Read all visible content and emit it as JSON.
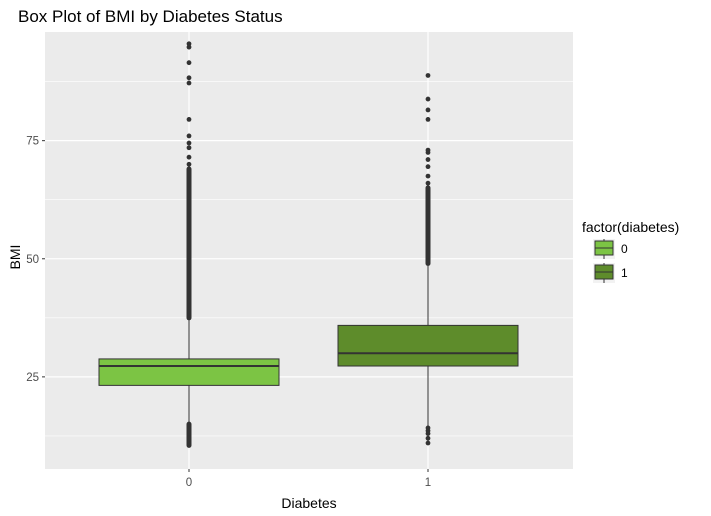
{
  "chart_data": {
    "type": "box",
    "title": "Box Plot of BMI by Diabetes Status",
    "xlabel": "Diabetes",
    "ylabel": "BMI",
    "categories": [
      "0",
      "1"
    ],
    "ylim": [
      5.5,
      98
    ],
    "yticks": [
      25,
      50,
      75
    ],
    "grid": true,
    "legend": {
      "title": "factor(diabetes)",
      "position": "right",
      "entries": [
        "0",
        "1"
      ]
    },
    "series": [
      {
        "category": "0",
        "color": "#7cc444",
        "min": 10,
        "q1": 23.2,
        "median": 27.3,
        "q3": 28.8,
        "max": 37.2,
        "outliers_high_range": [
          37.5,
          69
        ],
        "outliers_high": [
          70,
          71.5,
          73.5,
          74.5,
          76,
          79.5,
          87.2,
          88.3,
          91.5,
          94.8,
          95.5
        ],
        "outliers_low_range": [
          10.5,
          15
        ]
      },
      {
        "category": "1",
        "color": "#5e8c2b",
        "min": 12.5,
        "q1": 27.3,
        "median": 30,
        "q3": 35.9,
        "max": 48.5,
        "outliers_high_range": [
          49,
          65
        ],
        "outliers_high": [
          66,
          67.5,
          69.5,
          71,
          72.5,
          73,
          79.5,
          81.5,
          83.8,
          88.8
        ],
        "outliers_low": [
          11,
          12,
          13,
          13.6,
          14.2
        ]
      }
    ],
    "colors": {
      "panel": "#ebebeb",
      "grid": "#ffffff",
      "outlier": "#333333",
      "box_stroke": "#333333"
    }
  }
}
